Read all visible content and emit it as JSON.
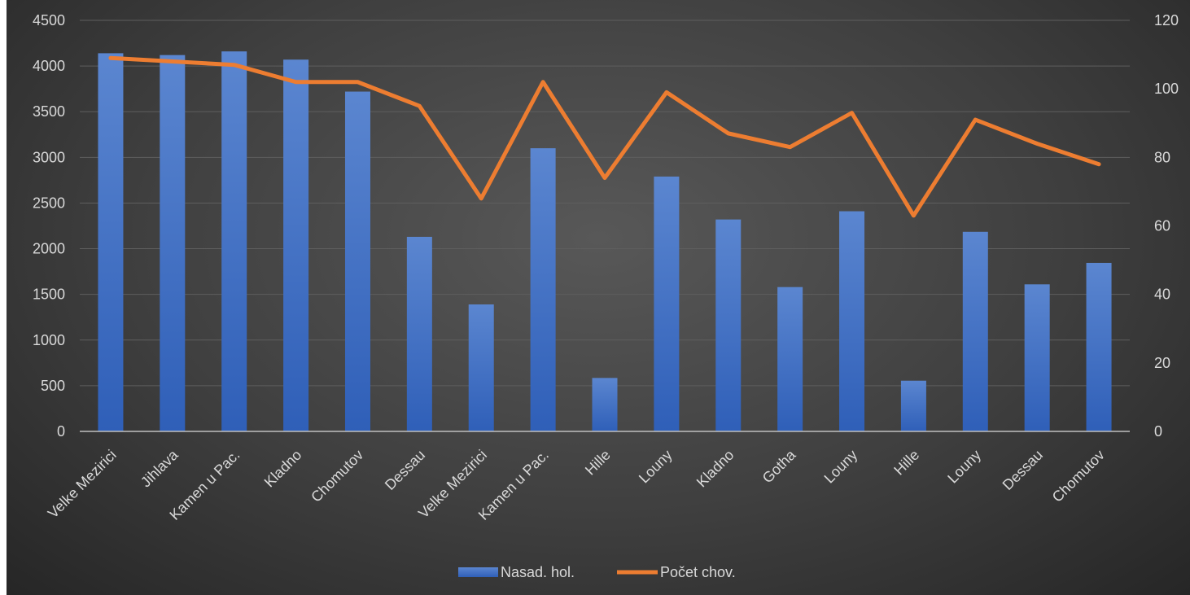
{
  "chart_data": {
    "type": "bar",
    "categories": [
      "Velke Mezirici",
      "Jihlava",
      "Kamen u Pac.",
      "Kladno",
      "Chomutov",
      "Dessau",
      "Velke Mezirici",
      "Kamen u Pac.",
      "Hille",
      "Louny",
      "Kladno",
      "Gotha",
      "Louny",
      "Hille",
      "Louny",
      "Dessau",
      "Chomutov"
    ],
    "series": [
      {
        "name": "Nasad. hol.",
        "type": "bar",
        "axis": "left",
        "color": "#4472c4",
        "values": [
          4140,
          4120,
          4160,
          4070,
          3720,
          2130,
          1390,
          3100,
          585,
          2790,
          2320,
          1580,
          2410,
          555,
          2185,
          1610,
          1845
        ]
      },
      {
        "name": "Počet chov.",
        "type": "line",
        "axis": "right",
        "color": "#ed7d31",
        "values": [
          109,
          108,
          107,
          102,
          102,
          95,
          68,
          102,
          74,
          99,
          87,
          83,
          93,
          63,
          91,
          84,
          78
        ]
      }
    ],
    "y_left": {
      "min": 0,
      "max": 4500,
      "step": 500,
      "ticks": [
        "0",
        "500",
        "1000",
        "1500",
        "2000",
        "2500",
        "3000",
        "3500",
        "4000",
        "4500"
      ]
    },
    "y_right": {
      "min": 0,
      "max": 120,
      "step": 20,
      "ticks": [
        "0",
        "20",
        "40",
        "60",
        "80",
        "100",
        "120"
      ]
    },
    "grid": true,
    "legend_position": "bottom",
    "title": "",
    "xlabel": "",
    "ylabel": ""
  }
}
